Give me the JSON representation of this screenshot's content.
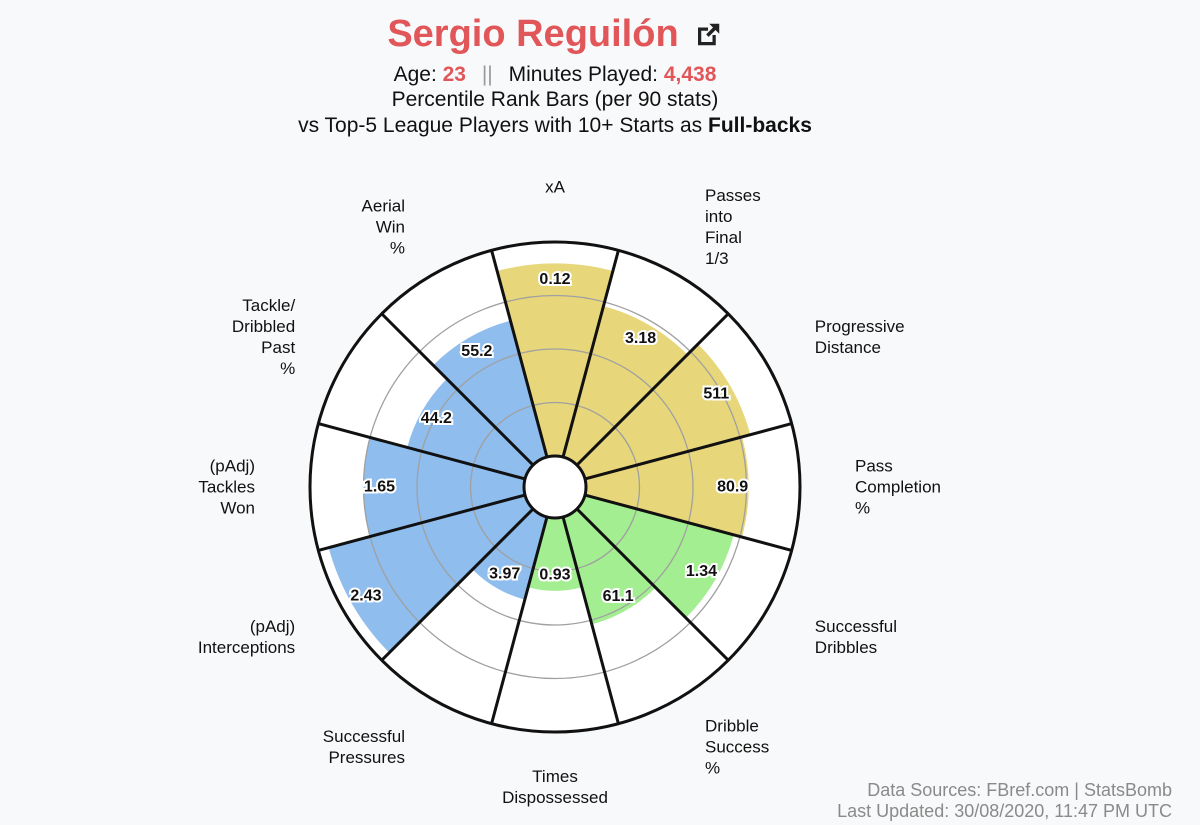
{
  "header": {
    "player_name": "Sergio Reguilón",
    "age_label": "Age:",
    "age": "23",
    "separator": "||",
    "minutes_label": "Minutes Played:",
    "minutes": "4,438",
    "subtitle1": "Percentile Rank Bars (per 90 stats)",
    "subtitle2_prefix": "vs Top-5 League Players with 10+ Starts as",
    "subtitle2_bold": "Full-backs"
  },
  "footer": {
    "sources": "Data Sources: FBref.com | StatsBomb",
    "updated": "Last Updated: 30/08/2020, 11:47 PM UTC"
  },
  "colors": {
    "title": "#e15759",
    "attacking": "#e7d67a",
    "possession": "#a4ee92",
    "defending": "#8ebdee"
  },
  "icons": {
    "link": "external-link-icon"
  },
  "chart_data": {
    "type": "polar-bar",
    "scale_max": 100,
    "start_angle_deg": -15,
    "slice_span_deg": 30,
    "grid": [
      25,
      50,
      75
    ],
    "categories": [
      {
        "label": [
          "xA"
        ],
        "value": "0.12",
        "percentile": 90,
        "group": "attacking"
      },
      {
        "label": [
          "Passes",
          "into",
          "Final",
          "1/3"
        ],
        "value": "3.18",
        "percentile": 73,
        "group": "attacking"
      },
      {
        "label": [
          "Progressive",
          "Distance"
        ],
        "value": "511",
        "percentile": 80,
        "group": "attacking"
      },
      {
        "label": [
          "Pass",
          "Completion",
          "%"
        ],
        "value": "80.9",
        "percentile": 76,
        "group": "attacking"
      },
      {
        "label": [
          "Successful",
          "Dribbles"
        ],
        "value": "1.34",
        "percentile": 72,
        "group": "possession"
      },
      {
        "label": [
          "Dribble",
          "Success",
          "%"
        ],
        "value": "61.1",
        "percentile": 52,
        "group": "possession"
      },
      {
        "label": [
          "Times",
          "Dispossessed"
        ],
        "value": "0.93",
        "percentile": 34,
        "group": "possession"
      },
      {
        "label": [
          "Successful",
          "Pressures"
        ],
        "value": "3.97",
        "percentile": 40,
        "group": "defending"
      },
      {
        "label": [
          "(pAdj)",
          "Interceptions"
        ],
        "value": "2.43",
        "percentile": 95,
        "group": "defending"
      },
      {
        "label": [
          "(pAdj)",
          "Tackles",
          "Won"
        ],
        "value": "1.65",
        "percentile": 75,
        "group": "defending"
      },
      {
        "label": [
          "Tackle/",
          "Dribbled",
          "Past",
          "%"
        ],
        "value": "44.2",
        "percentile": 57,
        "group": "defending"
      },
      {
        "label": [
          "Aerial",
          "Win",
          "%"
        ],
        "value": "55.2",
        "percentile": 66,
        "group": "defending"
      }
    ]
  }
}
